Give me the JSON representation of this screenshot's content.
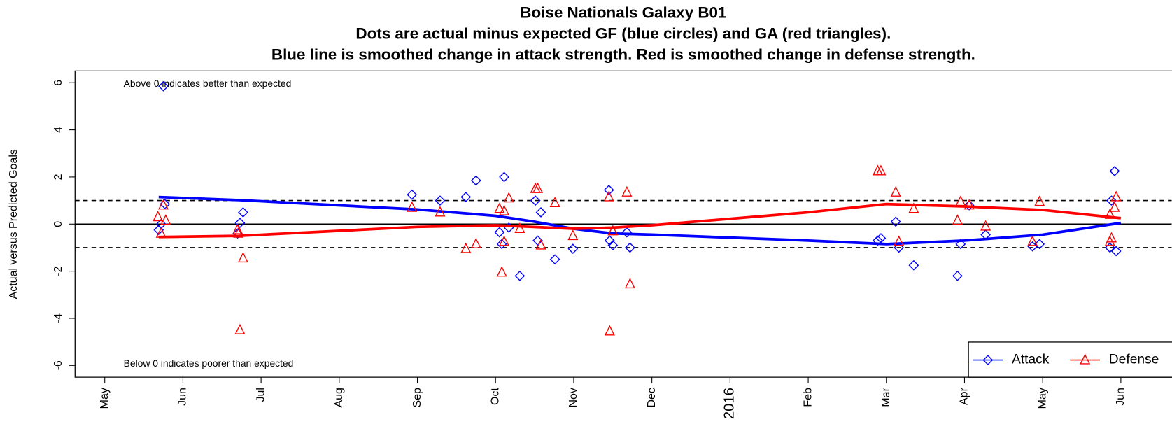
{
  "chart_data": {
    "type": "scatter",
    "title": "Boise Nationals Galaxy B01",
    "subtitle": [
      "Dots are actual minus expected GF (blue circles) and GA (red triangles).",
      "Blue line is smoothed change in attack strength. Red is smoothed change in defense strength."
    ],
    "y_label": "Actual versus Predicted Goals",
    "annotations": [
      "Above 0 indicates better than expected",
      "Below 0 indicates poorer than expected"
    ],
    "xlim": [
      -0.38,
      13.65
    ],
    "xticks": [
      {
        "value": 0,
        "label": "May"
      },
      {
        "value": 1,
        "label": "Jun"
      },
      {
        "value": 2,
        "label": "Jul"
      },
      {
        "value": 3,
        "label": "Aug"
      },
      {
        "value": 4,
        "label": "Sep"
      },
      {
        "value": 5,
        "label": "Oct"
      },
      {
        "value": 6,
        "label": "Nov"
      },
      {
        "value": 7,
        "label": "Dec"
      },
      {
        "value": 8,
        "label": "2016"
      },
      {
        "value": 9,
        "label": "Feb"
      },
      {
        "value": 10,
        "label": "Mar"
      },
      {
        "value": 11,
        "label": "Apr"
      },
      {
        "value": 12,
        "label": "May"
      },
      {
        "value": 13,
        "label": "Jun"
      }
    ],
    "ylim": [
      -6.5,
      6.5
    ],
    "yticks": [
      -6,
      -4,
      -2,
      0,
      2,
      4,
      6
    ],
    "hlines": [
      {
        "value": 0,
        "dashed": false
      },
      {
        "value": 1,
        "dashed": true
      },
      {
        "value": -1,
        "dashed": true
      }
    ],
    "legend": "bottom-right",
    "series": [
      {
        "name": "Attack",
        "color": "#0000ff",
        "marker": "diamond",
        "x": [
          0.69,
          0.72,
          0.77,
          0.75,
          1.7,
          1.73,
          1.77,
          3.93,
          4.29,
          4.62,
          4.75,
          5.05,
          5.08,
          5.11,
          5.17,
          5.31,
          5.51,
          5.54,
          5.58,
          5.76,
          5.99,
          6.45,
          6.46,
          6.5,
          6.68,
          6.72,
          9.89,
          9.93,
          10.12,
          10.16,
          10.35,
          10.91,
          10.95,
          11.06,
          11.27,
          11.87,
          11.96,
          12.86,
          12.88,
          12.92,
          12.94
        ],
        "values": [
          -0.25,
          0,
          0.85,
          5.85,
          -0.4,
          0.05,
          0.5,
          1.25,
          1.0,
          1.15,
          1.85,
          -0.35,
          -0.85,
          2.0,
          -0.15,
          -2.2,
          1.0,
          -0.7,
          0.5,
          -1.5,
          -1.05,
          1.45,
          -0.7,
          -0.9,
          -0.35,
          -1.0,
          -0.7,
          -0.6,
          0.1,
          -1.0,
          -1.75,
          -2.2,
          -0.85,
          0.8,
          -0.45,
          -0.95,
          -0.85,
          -1.0,
          1.0,
          2.25,
          -1.15
        ],
        "smooth_x": [
          0.69,
          1.72,
          4.0,
          5.0,
          5.5,
          6.0,
          6.5,
          7.0,
          9.0,
          10.0,
          11.0,
          12.0,
          13.0
        ],
        "smooth_values": [
          1.15,
          1.02,
          0.62,
          0.35,
          0.1,
          -0.2,
          -0.4,
          -0.45,
          -0.7,
          -0.85,
          -0.7,
          -0.45,
          0.05
        ]
      },
      {
        "name": "Defense",
        "color": "#ff0000",
        "marker": "triangle",
        "x": [
          0.68,
          0.75,
          0.78,
          0.72,
          1.71,
          1.77,
          1.73,
          1.7,
          3.93,
          4.29,
          4.62,
          4.75,
          5.05,
          5.08,
          5.11,
          5.17,
          5.31,
          5.11,
          5.51,
          5.54,
          5.58,
          5.76,
          5.99,
          6.45,
          6.46,
          6.5,
          6.68,
          6.72,
          9.89,
          9.93,
          10.12,
          10.16,
          10.35,
          10.91,
          10.95,
          11.06,
          11.27,
          11.87,
          11.96,
          12.86,
          12.88,
          12.92,
          12.94,
          12.86
        ],
        "values": [
          0.3,
          0.8,
          0.15,
          -0.4,
          -0.4,
          -1.45,
          -4.5,
          -0.25,
          0.7,
          0.5,
          -1.05,
          -0.85,
          0.65,
          -2.05,
          0.55,
          1.1,
          -0.2,
          -0.75,
          1.5,
          1.5,
          -0.9,
          0.9,
          -0.5,
          1.15,
          -4.55,
          -0.3,
          1.35,
          -2.55,
          2.25,
          2.25,
          1.35,
          -0.75,
          0.65,
          0.15,
          0.95,
          0.8,
          -0.1,
          -0.75,
          0.95,
          0.4,
          -0.6,
          0.7,
          1.15,
          -0.75
        ],
        "smooth_x": [
          0.69,
          1.72,
          4.0,
          5.0,
          6.0,
          6.5,
          7.0,
          9.0,
          10.0,
          11.0,
          12.0,
          13.0
        ],
        "smooth_values": [
          -0.55,
          -0.5,
          -0.12,
          -0.05,
          -0.2,
          -0.15,
          -0.05,
          0.5,
          0.85,
          0.75,
          0.6,
          0.25
        ]
      }
    ]
  }
}
